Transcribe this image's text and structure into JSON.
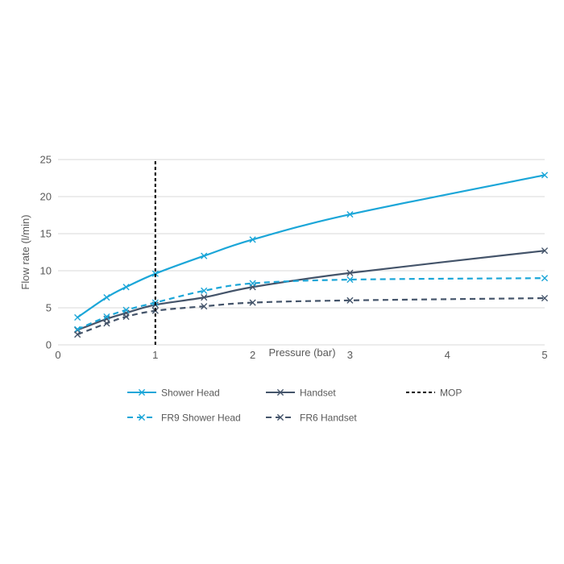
{
  "chart_data": {
    "type": "line",
    "title": "",
    "xlabel": "Pressure (bar)",
    "ylabel": "Flow rate (l/min)",
    "xlim": [
      0,
      5
    ],
    "ylim": [
      0,
      25
    ],
    "x_ticks": [
      "0",
      "1",
      "2",
      "3",
      "4",
      "5"
    ],
    "y_ticks": [
      "0",
      "5",
      "10",
      "15",
      "20",
      "25"
    ],
    "grid": "horizontal",
    "legend_position": "bottom",
    "series": [
      {
        "name": "Shower Head",
        "color": "#1ba6d8",
        "dashed": false,
        "marker": "x",
        "x": [
          0.2,
          0.5,
          0.7,
          1,
          1.5,
          2,
          3,
          5
        ],
        "y": [
          3.7,
          6.4,
          7.8,
          9.6,
          12.0,
          14.2,
          17.6,
          22.9
        ]
      },
      {
        "name": "Handset",
        "color": "#44546a",
        "dashed": false,
        "marker": "x",
        "x": [
          0.2,
          0.5,
          0.7,
          1,
          1.5,
          2,
          3,
          5
        ],
        "y": [
          2.0,
          3.5,
          4.3,
          5.4,
          6.4,
          7.8,
          9.7,
          12.7
        ]
      },
      {
        "name": "MOP",
        "color": "#000000",
        "dashed": true,
        "marker": "none",
        "x": [
          1,
          1
        ],
        "y": [
          0,
          25
        ]
      },
      {
        "name": "FR9 Shower Head",
        "color": "#1ba6d8",
        "dashed": true,
        "marker": "x",
        "x": [
          0.2,
          0.5,
          0.7,
          1,
          1.5,
          2,
          3,
          5
        ],
        "y": [
          2.1,
          3.8,
          4.7,
          5.7,
          7.3,
          8.3,
          8.8,
          9.0
        ]
      },
      {
        "name": "FR6 Handset",
        "color": "#44546a",
        "dashed": true,
        "marker": "x",
        "x": [
          0.2,
          0.5,
          0.7,
          1,
          1.5,
          2,
          3,
          5
        ],
        "y": [
          1.4,
          2.9,
          3.8,
          4.6,
          5.2,
          5.7,
          6.0,
          6.3
        ]
      }
    ]
  }
}
